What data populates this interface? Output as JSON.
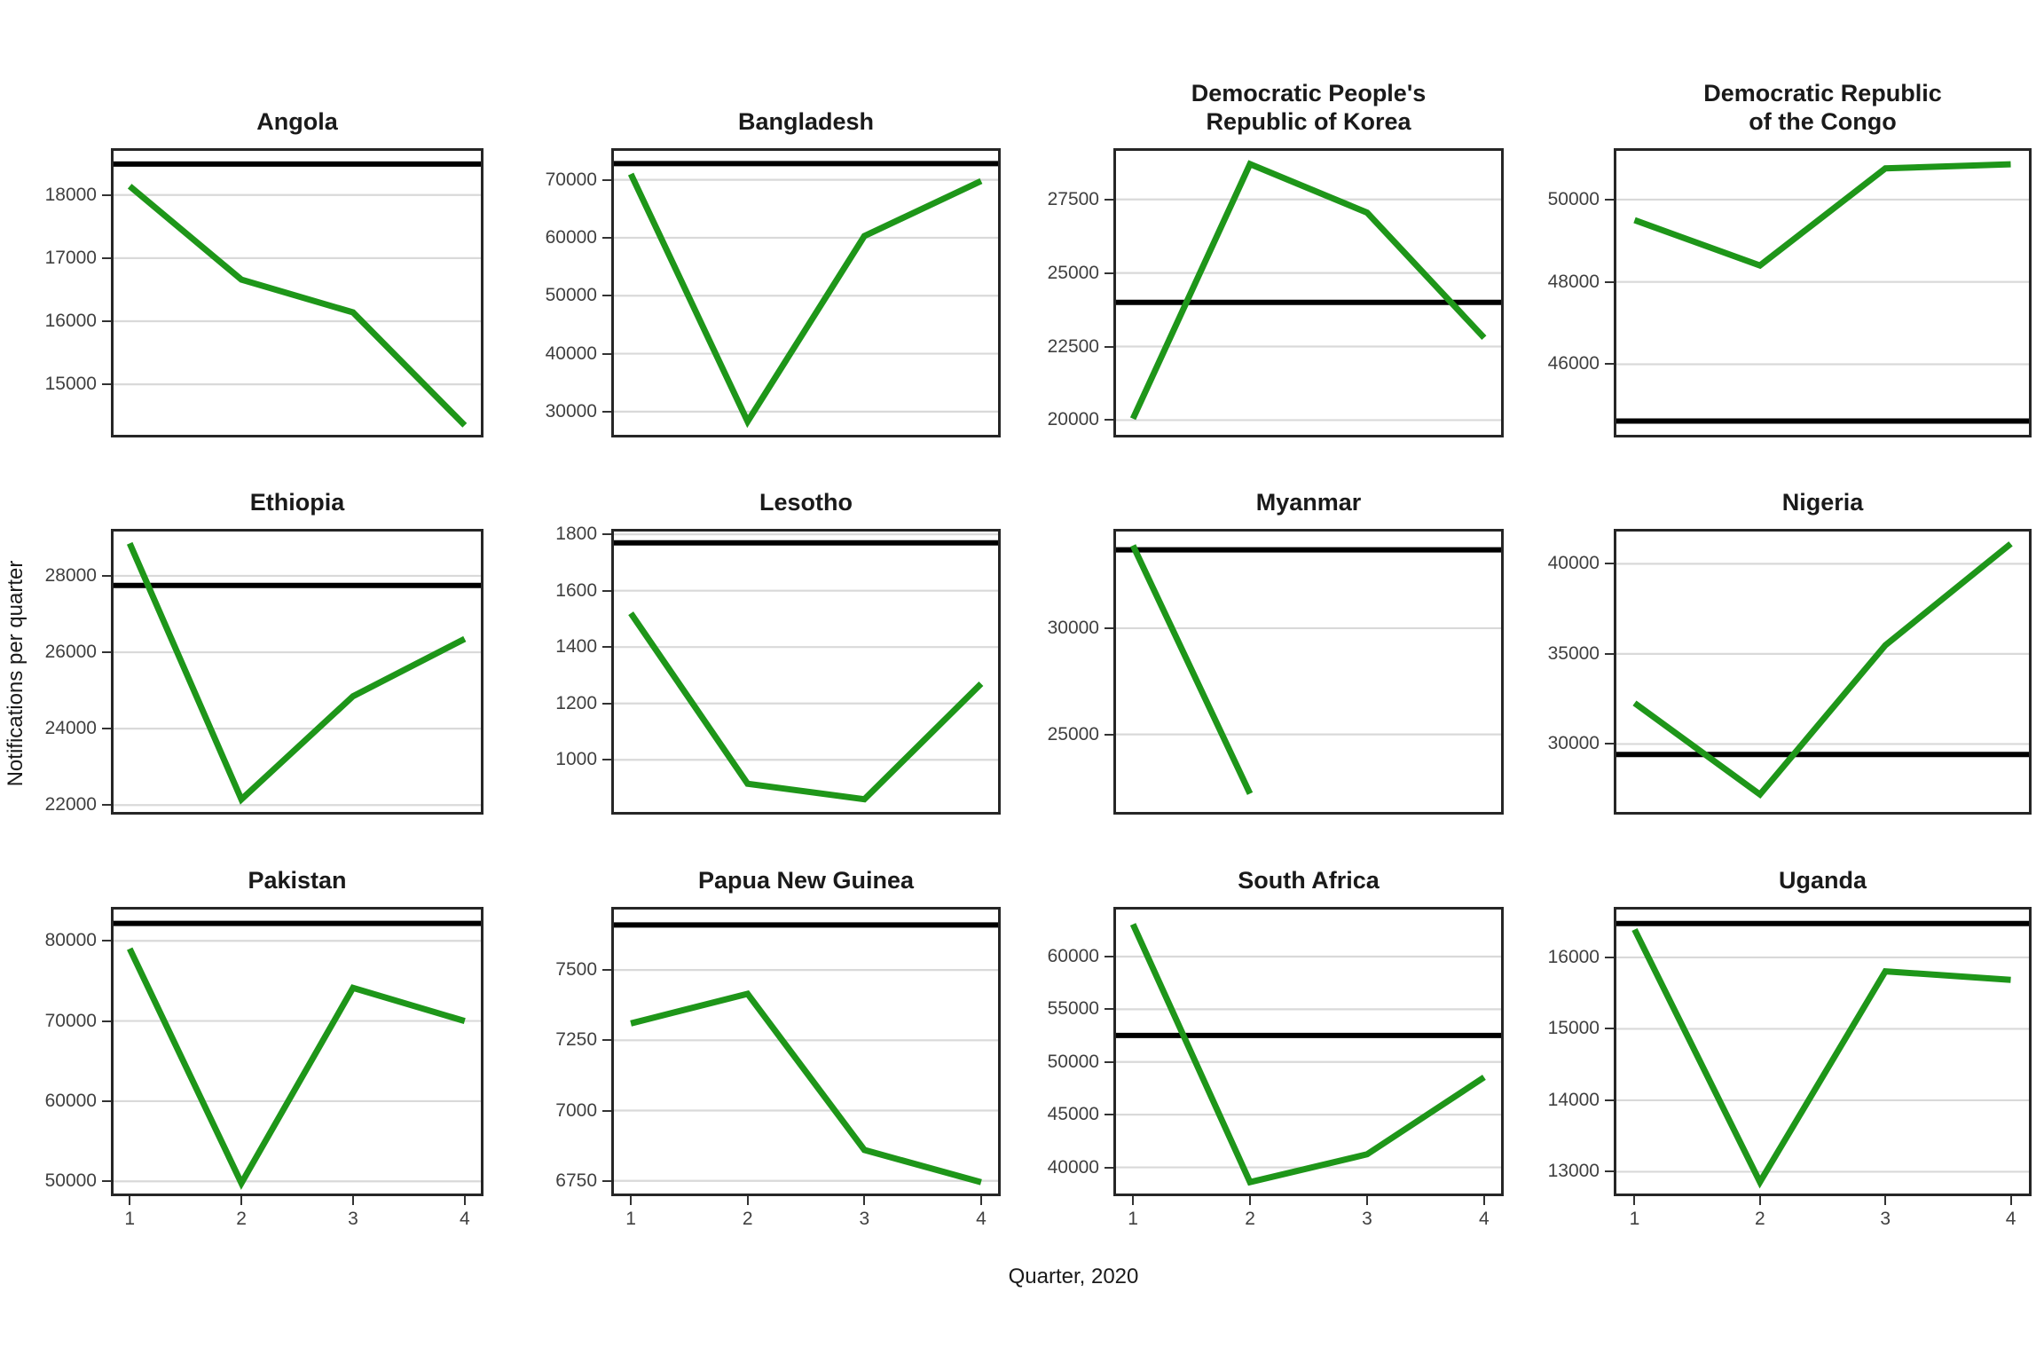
{
  "figure": {
    "x_axis_label": "Quarter, 2020",
    "y_axis_label": "Notifications per quarter",
    "series_color": "#1e9619",
    "reference_color": "#000000",
    "gridline_color": "#d9d9d9"
  },
  "chart_data": {
    "type": "line",
    "title": "",
    "xlabel": "Quarter, 2020",
    "ylabel": "Notifications per quarter",
    "x": [
      1,
      2,
      3,
      4
    ],
    "legend": "none",
    "grid": "horizontal-major-only",
    "layout": "4x3 facet grid, free y scales",
    "panels": [
      {
        "title": "Angola",
        "values": [
          18140,
          16660,
          16140,
          14350
        ],
        "reference": 18490,
        "yticks": [
          18000,
          17000,
          16000,
          15000
        ],
        "ylim": [
          14200,
          18700
        ]
      },
      {
        "title": "Bangladesh",
        "values": [
          71000,
          28300,
          60300,
          69800
        ],
        "reference": 72800,
        "yticks": [
          70000,
          60000,
          50000,
          40000,
          30000
        ],
        "ylim": [
          26000,
          75000
        ]
      },
      {
        "title": "Democratic People's\nRepublic of Korea",
        "values": [
          20050,
          28700,
          27050,
          22800
        ],
        "reference": 24000,
        "yticks": [
          27500,
          25000,
          22500,
          20000
        ],
        "ylim": [
          19500,
          29150
        ]
      },
      {
        "title": "Democratic Republic\nof the Congo",
        "values": [
          49500,
          48400,
          50760,
          50860
        ],
        "reference": 44620,
        "yticks": [
          50000,
          48000,
          46000
        ],
        "ylim": [
          44285,
          51185
        ]
      },
      {
        "title": "Ethiopia",
        "values": [
          28850,
          22150,
          24850,
          26350
        ],
        "reference": 27750,
        "yticks": [
          28000,
          26000,
          24000,
          22000
        ],
        "ylim": [
          21820,
          29160
        ]
      },
      {
        "title": "Lesotho",
        "values": [
          1520,
          915,
          860,
          1270
        ],
        "reference": 1770,
        "yticks": [
          1800,
          1600,
          1400,
          1200,
          1000
        ],
        "ylim": [
          815,
          1810
        ]
      },
      {
        "title": "Myanmar",
        "values": [
          33890,
          22210,
          null,
          null
        ],
        "reference": 33690,
        "yticks": [
          30000,
          25000
        ],
        "ylim": [
          21350,
          34550
        ]
      },
      {
        "title": "Nigeria",
        "values": [
          32270,
          27200,
          35480,
          41110
        ],
        "reference": 29420,
        "yticks": [
          40000,
          35000,
          30000
        ],
        "ylim": [
          26230,
          41790
        ]
      },
      {
        "title": "Pakistan",
        "values": [
          79020,
          49780,
          74130,
          70000
        ],
        "reference": 82170,
        "yticks": [
          80000,
          70000,
          60000,
          50000
        ],
        "ylim": [
          48480,
          83900
        ]
      },
      {
        "title": "Papua New Guinea",
        "values": [
          7310,
          7415,
          6860,
          6745
        ],
        "reference": 7660,
        "yticks": [
          7500,
          7250,
          7000,
          6750
        ],
        "ylim": [
          6705,
          7715
        ]
      },
      {
        "title": "South Africa",
        "values": [
          63060,
          38600,
          41240,
          48550
        ],
        "reference": 52520,
        "yticks": [
          60000,
          55000,
          50000,
          45000,
          40000
        ],
        "ylim": [
          37520,
          64460
        ]
      },
      {
        "title": "Uganda",
        "values": [
          16390,
          12855,
          15805,
          15685
        ],
        "reference": 16475,
        "yticks": [
          16000,
          15000,
          14000,
          13000
        ],
        "ylim": [
          12695,
          16670
        ]
      }
    ]
  }
}
